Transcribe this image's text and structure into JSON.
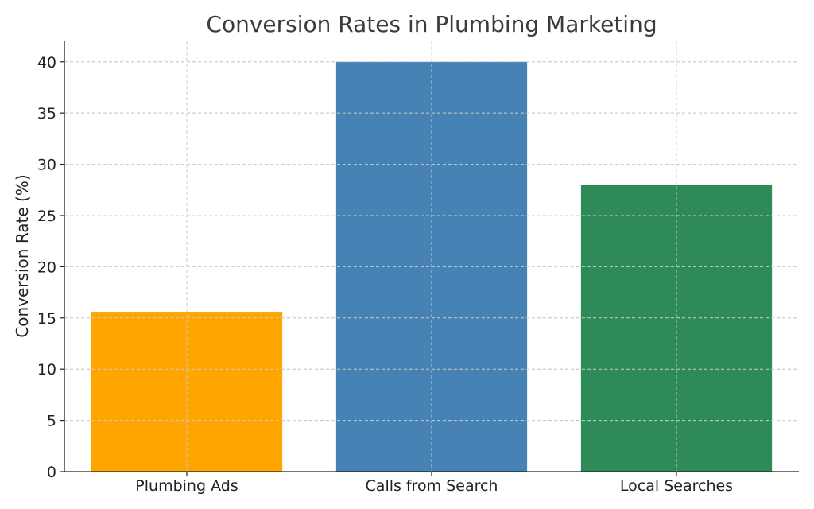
{
  "chart_data": {
    "type": "bar",
    "title": "Conversion Rates in Plumbing Marketing",
    "xlabel": "",
    "ylabel": "Conversion Rate (%)",
    "categories": [
      "Plumbing Ads",
      "Calls from Search",
      "Local Searches"
    ],
    "values": [
      15.6,
      40,
      28
    ],
    "colors": [
      "#FFA500",
      "#4682B4",
      "#2E8B57"
    ],
    "ylim": [
      0,
      42
    ],
    "yticks": [
      0,
      5,
      10,
      15,
      20,
      25,
      30,
      35,
      40
    ],
    "grid": true
  }
}
